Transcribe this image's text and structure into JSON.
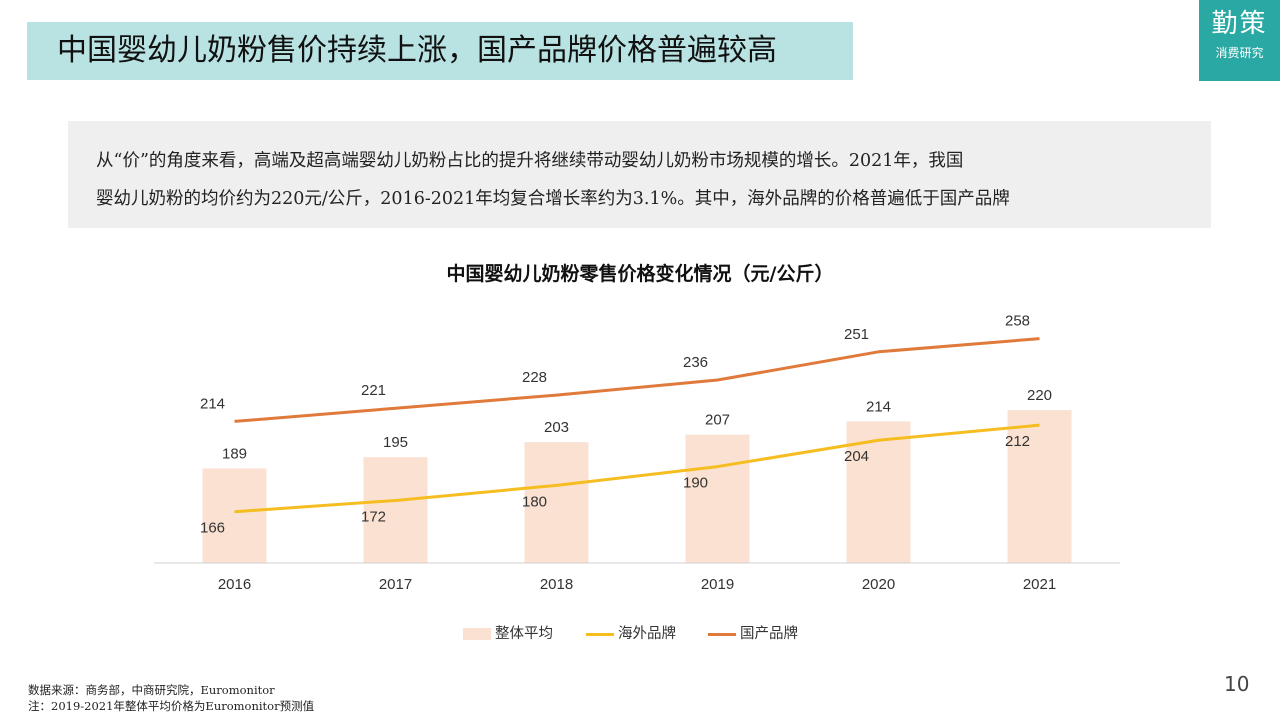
{
  "header": {
    "title": "中国婴幼儿奶粉售价持续上涨，国产品牌价格普遍较高",
    "logo_main": "勤策",
    "logo_sub": "消费研究"
  },
  "intro": {
    "line1": "从“价”的角度来看，高端及超高端婴幼儿奶粉占比的提升将继续带动婴幼儿奶粉市场规模的增长。2021年，我国",
    "line2": "婴幼儿奶粉的均价约为220元/公斤，2016-2021年均复合增长率约为3.1%。其中，海外品牌的价格普遍低于国产品牌"
  },
  "chart_data": {
    "type": "bar",
    "title": "中国婴幼儿奶粉零售价格变化情况（元/公斤）",
    "categories": [
      "2016",
      "2017",
      "2018",
      "2019",
      "2020",
      "2021"
    ],
    "series": [
      {
        "name": "整体平均",
        "type": "bar",
        "color": "#fbe1d2",
        "values": [
          189,
          195,
          203,
          207,
          214,
          220
        ]
      },
      {
        "name": "海外品牌",
        "type": "line",
        "color": "#f5bd1f",
        "values": [
          166,
          172,
          180,
          190,
          204,
          212
        ]
      },
      {
        "name": "国产品牌",
        "type": "line",
        "color": "#e07a3a",
        "values": [
          214,
          221,
          228,
          236,
          251,
          258
        ]
      }
    ],
    "ylim": [
      0,
      300
    ],
    "grid": false,
    "legend": "bottom",
    "xlabel": "",
    "ylabel": ""
  },
  "footer": {
    "source": "数据来源：商务部，中商研究院，Euromonitor",
    "note": "注：2019-2021年整体平均价格为Euromonitor预测值",
    "page": "10"
  }
}
